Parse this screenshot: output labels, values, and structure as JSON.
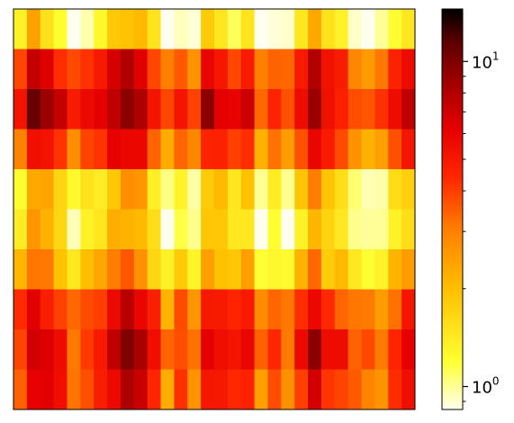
{
  "chart_data": {
    "type": "heatmap",
    "title": "",
    "xlabel": "",
    "ylabel": "",
    "x_ticks_visible": false,
    "y_ticks_visible": false,
    "grid": false,
    "n_rows": 10,
    "n_cols": 30,
    "row_band_values": [
      1.25,
      4.3,
      5.7,
      3.7,
      1.5,
      1.35,
      1.9,
      4.0,
      4.9,
      4.2
    ],
    "colorbar": {
      "position": "right",
      "scale": "log",
      "colormap": "hot_r",
      "vmin": 0.85,
      "vmax": 14.5,
      "ticks": [
        {
          "base": "10",
          "exp": "0",
          "value": 1
        },
        {
          "base": "10",
          "exp": "1",
          "value": 10
        }
      ],
      "colors": [
        "#fffff0",
        "#ffff33",
        "#ffc000",
        "#ff7e00",
        "#ff2600",
        "#e60000",
        "#a00000",
        "#5a0000",
        "#000000"
      ]
    }
  }
}
